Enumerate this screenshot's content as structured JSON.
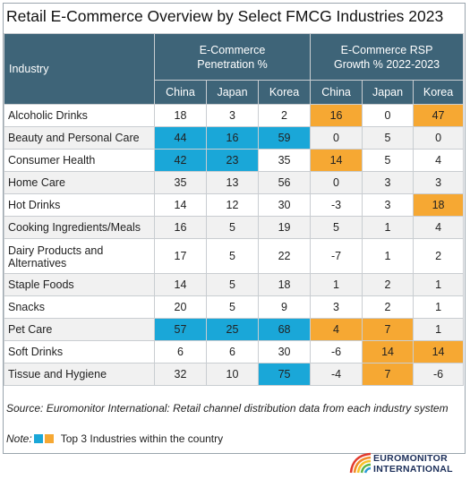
{
  "chart_data": {
    "type": "table",
    "title": "Retail E-Commerce Overview by Select FMCG Industries 2023",
    "row_header_label": "Industry",
    "column_groups": [
      {
        "label_line1": "E-Commerce",
        "label_line2": "Penetration %",
        "columns": [
          "China",
          "Japan",
          "Korea"
        ]
      },
      {
        "label_line1": "E-Commerce RSP",
        "label_line2": "Growth % 2022-2023",
        "columns": [
          "China",
          "Japan",
          "Korea"
        ]
      }
    ],
    "rows": [
      {
        "industry": "Alcoholic Drinks",
        "values": [
          "18",
          "3",
          "2",
          "16",
          "0",
          "47"
        ],
        "highlight": [
          "",
          "",
          "",
          "orange",
          "",
          "orange"
        ]
      },
      {
        "industry": "Beauty and Personal Care",
        "values": [
          "44",
          "16",
          "59",
          "0",
          "5",
          "0"
        ],
        "highlight": [
          "blue",
          "blue",
          "blue",
          "",
          "",
          ""
        ]
      },
      {
        "industry": "Consumer Health",
        "values": [
          "42",
          "23",
          "35",
          "14",
          "5",
          "4"
        ],
        "highlight": [
          "blue",
          "blue",
          "",
          "orange",
          "",
          ""
        ]
      },
      {
        "industry": "Home Care",
        "values": [
          "35",
          "13",
          "56",
          "0",
          "3",
          "3"
        ],
        "highlight": [
          "",
          "",
          "",
          "",
          "",
          ""
        ]
      },
      {
        "industry": "Hot Drinks",
        "values": [
          "14",
          "12",
          "30",
          "-3",
          "3",
          "18"
        ],
        "highlight": [
          "",
          "",
          "",
          "",
          "",
          "orange"
        ]
      },
      {
        "industry": "Cooking Ingredients/Meals",
        "values": [
          "16",
          "5",
          "19",
          "5",
          "1",
          "4"
        ],
        "highlight": [
          "",
          "",
          "",
          "",
          "",
          ""
        ]
      },
      {
        "industry": "Dairy Products and Alternatives",
        "values": [
          "17",
          "5",
          "22",
          "-7",
          "1",
          "2"
        ],
        "highlight": [
          "",
          "",
          "",
          "",
          "",
          ""
        ]
      },
      {
        "industry": "Staple Foods",
        "values": [
          "14",
          "5",
          "18",
          "1",
          "2",
          "1"
        ],
        "highlight": [
          "",
          "",
          "",
          "",
          "",
          ""
        ]
      },
      {
        "industry": "Snacks",
        "values": [
          "20",
          "5",
          "9",
          "3",
          "2",
          "1"
        ],
        "highlight": [
          "",
          "",
          "",
          "",
          "",
          ""
        ]
      },
      {
        "industry": "Pet Care",
        "values": [
          "57",
          "25",
          "68",
          "4",
          "7",
          "1"
        ],
        "highlight": [
          "blue",
          "blue",
          "blue",
          "orange",
          "orange",
          ""
        ]
      },
      {
        "industry": "Soft Drinks",
        "values": [
          "6",
          "6",
          "30",
          "-6",
          "14",
          "14"
        ],
        "highlight": [
          "",
          "",
          "",
          "",
          "orange",
          "orange"
        ]
      },
      {
        "industry": "Tissue and Hygiene",
        "values": [
          "32",
          "10",
          "75",
          "-4",
          "7",
          "-6"
        ],
        "highlight": [
          "",
          "",
          "blue",
          "",
          "orange",
          ""
        ]
      }
    ],
    "source": "Source: Euromonitor International: Retail channel distribution data from each industry system",
    "note_label": "Note:",
    "legend_text": "Top 3 Industries within the country",
    "colors": {
      "header": "#3e6478",
      "blue": "#1aa7d8",
      "orange": "#f6a833",
      "alt_row": "#f1f1f1"
    }
  },
  "logo": {
    "line1": "EUROMONITOR",
    "line2": "INTERNATIONAL"
  }
}
